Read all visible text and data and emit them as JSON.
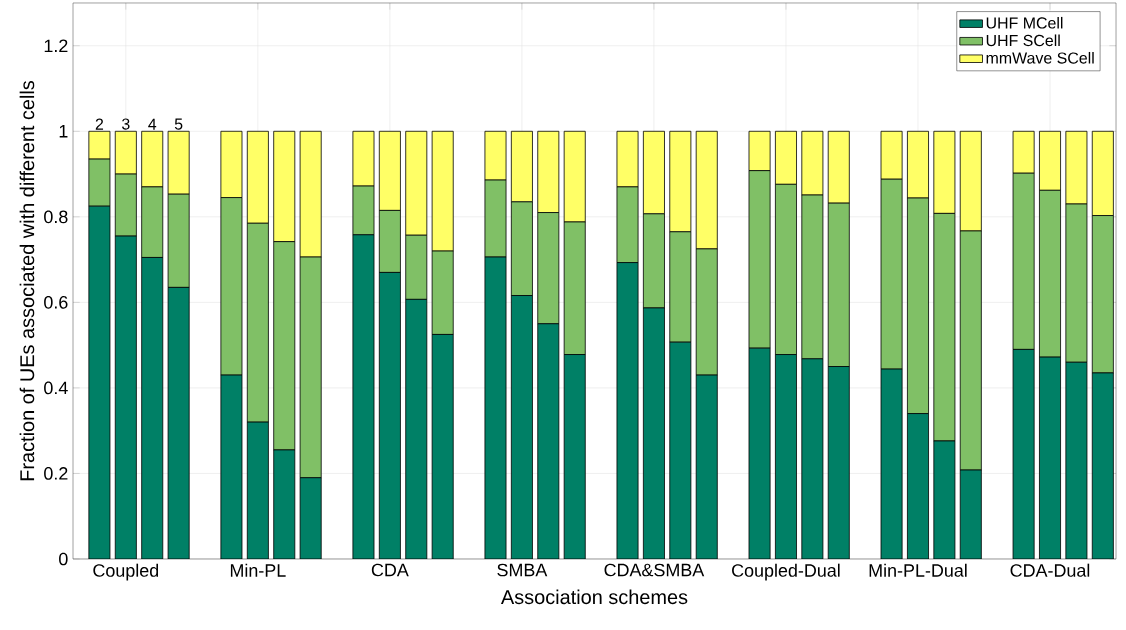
{
  "chart_data": {
    "type": "bar",
    "stacked": true,
    "xlabel": "Association schemes",
    "ylabel": "Fraction of UEs associated with different cells",
    "categories": [
      null,
      "Coupled",
      null,
      null,
      null,
      null,
      "Min-PL",
      null,
      null,
      null,
      null,
      "CDA",
      null,
      null,
      null,
      null,
      "SMBA",
      null,
      null,
      null,
      null,
      "CDA&SMBA",
      null,
      null,
      null,
      null,
      "Coupled-Dual",
      null,
      null,
      null,
      null,
      "Min-PL-Dual",
      null,
      null,
      null,
      null,
      "CDA-Dual",
      null,
      null
    ],
    "ylim": [
      0,
      1.3
    ],
    "yticks": [
      0,
      0.2,
      0.4,
      0.6,
      0.8,
      1,
      1.2
    ],
    "grid": true,
    "legend": "top right",
    "series": [
      {
        "name": "UHF MCell",
        "color": "#008066",
        "values": [
          0.825,
          0.755,
          0.705,
          0.635,
          null,
          0.43,
          0.32,
          0.255,
          0.19,
          null,
          0.758,
          0.67,
          0.607,
          0.525,
          null,
          0.706,
          0.616,
          0.55,
          0.478,
          null,
          0.693,
          0.587,
          0.507,
          0.43,
          null,
          0.493,
          0.478,
          0.468,
          0.45,
          null,
          0.444,
          0.34,
          0.276,
          0.208,
          null,
          0.49,
          0.472,
          0.46,
          0.435
        ]
      },
      {
        "name": "UHF SCell",
        "color": "#80c066",
        "values": [
          0.11,
          0.145,
          0.165,
          0.218,
          null,
          0.415,
          0.465,
          0.487,
          0.516,
          null,
          0.114,
          0.145,
          0.15,
          0.195,
          null,
          0.18,
          0.219,
          0.26,
          0.31,
          null,
          0.177,
          0.22,
          0.258,
          0.295,
          null,
          0.415,
          0.398,
          0.383,
          0.382,
          null,
          0.444,
          0.504,
          0.532,
          0.559,
          null,
          0.412,
          0.39,
          0.37,
          0.368
        ]
      },
      {
        "name": "mmWave SCell",
        "color": "#ffff66",
        "values": [
          0.065,
          0.1,
          0.13,
          0.147,
          null,
          0.155,
          0.215,
          0.258,
          0.294,
          null,
          0.128,
          0.185,
          0.243,
          0.28,
          null,
          0.114,
          0.165,
          0.19,
          0.212,
          null,
          0.13,
          0.193,
          0.235,
          0.275,
          null,
          0.092,
          0.124,
          0.149,
          0.168,
          null,
          0.112,
          0.156,
          0.192,
          0.233,
          null,
          0.098,
          0.138,
          0.17,
          0.197
        ]
      }
    ],
    "annotations": [
      {
        "text": "2",
        "y": 1
      },
      {
        "text": "3",
        "y": 1
      },
      {
        "text": "4",
        "y": 1
      },
      {
        "text": "5",
        "y": 1
      }
    ]
  }
}
